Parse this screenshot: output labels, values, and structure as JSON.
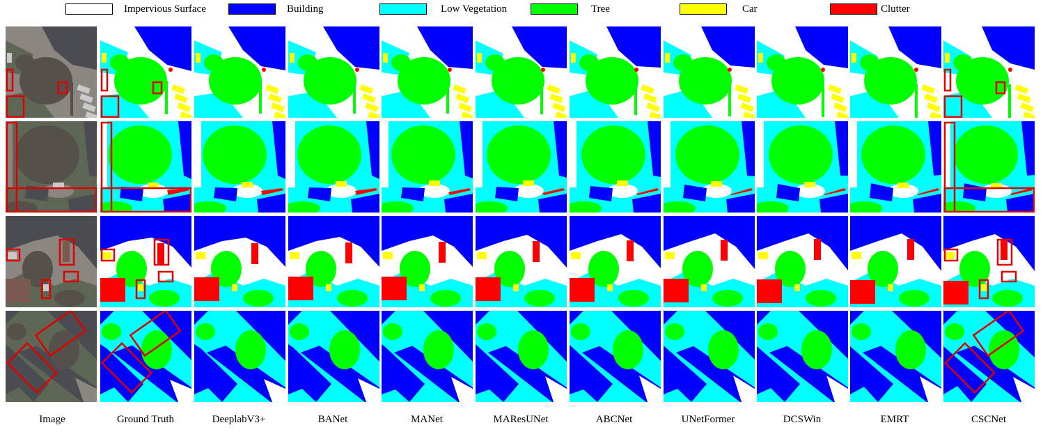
{
  "legend": {
    "items": [
      {
        "label": "Impervious Surface",
        "color": "#ffffff"
      },
      {
        "label": "Building",
        "color": "#0000ff"
      },
      {
        "label": "Low Vegetation",
        "color": "#00ffff"
      },
      {
        "label": "Tree",
        "color": "#00ff00"
      },
      {
        "label": "Car",
        "color": "#ffff00"
      },
      {
        "label": "Clutter",
        "color": "#ff0000"
      }
    ]
  },
  "columns": [
    "Image",
    "Ground Truth",
    "DeeplabV3+",
    "BANet",
    "MANet",
    "MAResUNet",
    "ABCNet",
    "UNetFormer",
    "DCSWin",
    "EMRT",
    "CSCNet"
  ],
  "colors": {
    "impervious": "#ffffff",
    "building": "#0000ff",
    "low_veg": "#00ffff",
    "tree": "#00ff00",
    "car": "#ffff00",
    "clutter": "#ff0000",
    "highlight": "#e00000",
    "photo_dark": "#3d3a37",
    "photo_mid": "#6b6863",
    "photo_light": "#9a958e"
  },
  "row_count": 4
}
